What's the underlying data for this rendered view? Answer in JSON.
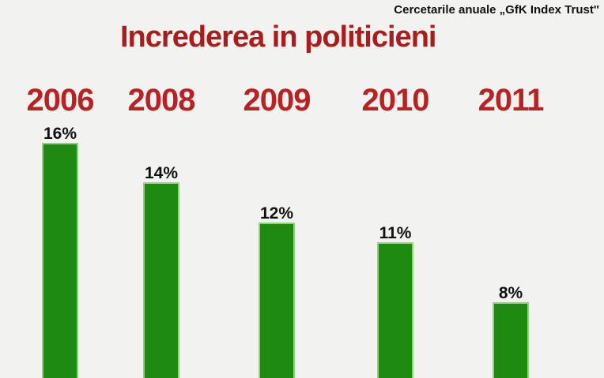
{
  "source": {
    "label": "Cercetarile anuale „GfK Index Trust''"
  },
  "title": "Increderea in politicieni",
  "chart_data": {
    "type": "bar",
    "title": "Increderea in politicieni",
    "subtitle": "Cercetarile anuale „GfK Index Trust''",
    "categories": [
      "2006",
      "2008",
      "2009",
      "2010",
      "2011"
    ],
    "values": [
      16,
      14,
      12,
      11,
      8
    ],
    "labels": [
      "16%",
      "14%",
      "12%",
      "11%",
      "8%"
    ],
    "xlabel": "",
    "ylabel": "",
    "unit": "%",
    "legend": false,
    "grid": false,
    "colors": {
      "bar": "#1e8a10",
      "bar_edge": "#8fd37d",
      "title": "#aa1d1d",
      "year": "#b92222",
      "label": "#111111",
      "background": "#f2f2f1"
    }
  }
}
